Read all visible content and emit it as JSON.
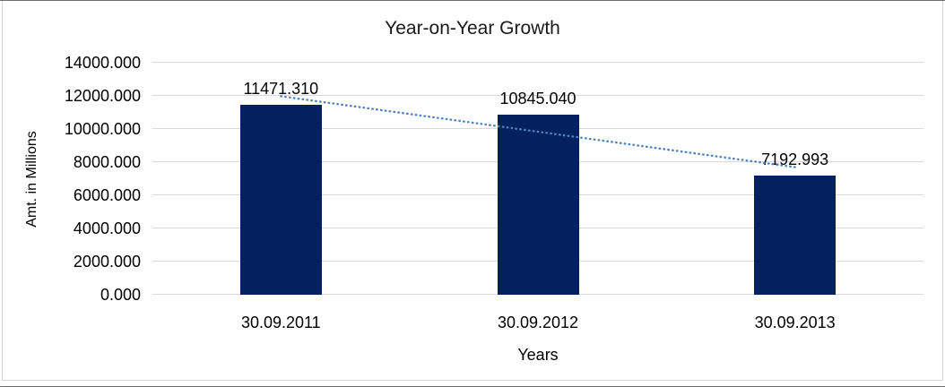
{
  "window": {
    "outer_border_color": "#6e6e6e",
    "inner_border_color": "#d2d2d2",
    "background": "#ffffff"
  },
  "chart_data": {
    "type": "bar",
    "title": "Year-on-Year Growth",
    "xlabel": "Years",
    "ylabel": "Amt. in Millions",
    "categories": [
      "30.09.2011",
      "30.09.2012",
      "30.09.2013"
    ],
    "values": [
      11471.31,
      10845.04,
      7192.993
    ],
    "data_labels": [
      "11471.310",
      "10845.040",
      "7192.993"
    ],
    "y_ticks": [
      0,
      2000,
      4000,
      6000,
      8000,
      10000,
      12000,
      14000
    ],
    "y_tick_decimals": 3,
    "ylim": [
      0,
      14000
    ],
    "grid": true,
    "legend": "none",
    "bar_color": "#02215E",
    "gridline_color": "#D9D9D9",
    "text_color": "#000000",
    "trendline": {
      "type": "linear",
      "style": "dotted",
      "color": "#4F81BD"
    }
  }
}
